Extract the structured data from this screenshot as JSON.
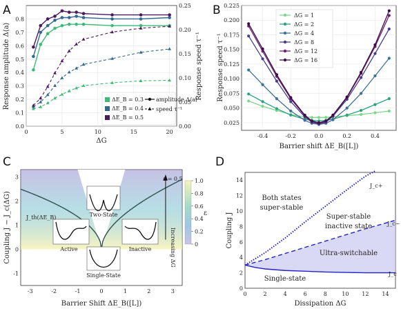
{
  "chart_data": [
    {
      "panel": "A",
      "type": "line",
      "xlabel": "ΔG",
      "ylabel": "Response amplitude Δ⟨a⟩",
      "y2label": "Response speed τ⁻¹",
      "xlim": [
        0,
        21
      ],
      "ylim": [
        0,
        0.9
      ],
      "y2lim": [
        0,
        0.25
      ],
      "xticks": [
        "0",
        "5",
        "10",
        "15",
        "20"
      ],
      "yticks": [
        "0.0",
        "0.1",
        "0.2",
        "0.3",
        "0.4",
        "0.5",
        "0.6",
        "0.7",
        "0.8"
      ],
      "y2ticks": [
        "0.00",
        "0.05",
        "0.10",
        "0.15",
        "0.20",
        "0.25"
      ],
      "x": [
        1,
        2,
        3,
        4,
        5,
        6,
        7,
        8,
        12,
        16,
        20
      ],
      "series": [
        {
          "name": "ΔE_B = 0.3",
          "color": "#3dbb74",
          "amplitude": [
            0.42,
            0.61,
            0.69,
            0.73,
            0.75,
            0.76,
            0.76,
            0.76,
            0.75,
            0.75,
            0.75
          ],
          "speed": [
            0.036,
            0.04,
            0.048,
            0.058,
            0.066,
            0.073,
            0.079,
            0.084,
            0.09,
            0.094,
            0.095
          ]
        },
        {
          "name": "ΔE_B = 0.4",
          "color": "#33688f",
          "amplitude": [
            0.52,
            0.7,
            0.75,
            0.79,
            0.81,
            0.81,
            0.82,
            0.81,
            0.8,
            0.8,
            0.81
          ],
          "speed": [
            0.04,
            0.05,
            0.065,
            0.084,
            0.1,
            0.112,
            0.12,
            0.128,
            0.14,
            0.153,
            0.16
          ]
        },
        {
          "name": "ΔE_B = 0.5",
          "color": "#4a1a5c",
          "amplitude": [
            0.59,
            0.75,
            0.8,
            0.82,
            0.86,
            0.85,
            0.85,
            0.84,
            0.83,
            0.83,
            0.83
          ],
          "speed": [
            0.043,
            0.058,
            0.082,
            0.11,
            0.135,
            0.156,
            0.17,
            0.18,
            0.195,
            0.203,
            0.207
          ]
        }
      ],
      "legend_styles": [
        "amplitude Δ⟨a⟩",
        "speed τ⁻¹"
      ]
    },
    {
      "panel": "B",
      "type": "line",
      "xlabel": "Barrier shift ΔE_B([L])",
      "ylabel": "Response speed τ⁻¹",
      "xlim": [
        -0.55,
        0.55
      ],
      "ylim": [
        0.012,
        0.225
      ],
      "xticks": [
        "-0.4",
        "-0.2",
        "0.0",
        "0.2",
        "0.4"
      ],
      "yticks": [
        "0.025",
        "0.050",
        "0.075",
        "0.100",
        "0.125",
        "0.150",
        "0.175",
        "0.200",
        "0.225"
      ],
      "x": [
        -0.5,
        -0.4,
        -0.3,
        -0.2,
        -0.1,
        -0.05,
        0.0,
        0.05,
        0.1,
        0.2,
        0.3,
        0.4,
        0.5
      ],
      "series": [
        {
          "name": "ΔG = 1",
          "color": "#7fd68a",
          "values": [
            0.062,
            0.053,
            0.046,
            0.039,
            0.035,
            0.034,
            0.034,
            0.034,
            0.035,
            0.037,
            0.039,
            0.042,
            0.045
          ]
        },
        {
          "name": "ΔG = 2",
          "color": "#2aa17f",
          "values": [
            0.074,
            0.061,
            0.049,
            0.038,
            0.031,
            0.029,
            0.028,
            0.029,
            0.031,
            0.038,
            0.046,
            0.056,
            0.066
          ]
        },
        {
          "name": "ΔG = 4",
          "color": "#3d7198",
          "values": [
            0.115,
            0.09,
            0.066,
            0.045,
            0.029,
            0.024,
            0.022,
            0.024,
            0.03,
            0.05,
            0.075,
            0.105,
            0.135
          ]
        },
        {
          "name": "ΔG = 8",
          "color": "#4a3d88",
          "values": [
            0.173,
            0.134,
            0.096,
            0.061,
            0.035,
            0.026,
            0.023,
            0.026,
            0.036,
            0.065,
            0.102,
            0.143,
            0.185
          ]
        },
        {
          "name": "ΔG = 12",
          "color": "#6a1f72",
          "values": [
            0.19,
            0.147,
            0.104,
            0.066,
            0.037,
            0.027,
            0.024,
            0.027,
            0.037,
            0.068,
            0.109,
            0.155,
            0.208
          ]
        },
        {
          "name": "ΔG = 16",
          "color": "#3d0e45",
          "values": [
            0.194,
            0.151,
            0.107,
            0.068,
            0.038,
            0.028,
            0.025,
            0.028,
            0.038,
            0.069,
            0.111,
            0.158,
            0.216
          ]
        }
      ]
    },
    {
      "panel": "C",
      "type": "line",
      "xlabel": "Barrier Shift ΔE_B([L])",
      "ylabel": "Coupling J − J_c(ΔG)",
      "xlim": [
        -3.4,
        3.4
      ],
      "ylim": [
        -1.5,
        3.3
      ],
      "xticks": [
        "-3",
        "-2",
        "-1",
        "0",
        "1",
        "2",
        "3"
      ],
      "yticks": [
        "-1",
        "0",
        "1",
        "2",
        "3"
      ],
      "curve_label": "J_th(ΔE_B)",
      "annotation_top": "ε = 0.5",
      "arrow_label": "Increasing ΔG",
      "colorbar_label": "ε",
      "colorbar_ticks": [
        "0",
        "0.2",
        "0.4",
        "0.6",
        "0.8",
        "1.0"
      ],
      "insets": [
        "Two-State",
        "Active",
        "Inactive",
        "Single-State"
      ]
    },
    {
      "panel": "D",
      "type": "line",
      "xlabel": "Dissipation ΔG",
      "ylabel": "Coupling J",
      "xlim": [
        0,
        15
      ],
      "ylim": [
        0,
        15
      ],
      "xticks": [
        "0",
        "2",
        "4",
        "6",
        "8",
        "10",
        "12",
        "14"
      ],
      "yticks": [
        "0",
        "2",
        "4",
        "6",
        "8",
        "10",
        "12",
        "14"
      ],
      "series": [
        {
          "name": "J_c+",
          "style": "dotted",
          "color": "#2121c9",
          "x": [
            0,
            2,
            4,
            6,
            8,
            10,
            12,
            13
          ],
          "values": [
            3.0,
            4.6,
            6.5,
            8.6,
            10.6,
            12.6,
            14.5,
            15.2
          ]
        },
        {
          "name": "J_c−",
          "style": "dashed",
          "color": "#2121c9",
          "x": [
            0,
            2,
            4,
            6,
            8,
            10,
            12,
            15
          ],
          "values": [
            3.0,
            3.7,
            4.5,
            5.3,
            6.1,
            6.9,
            7.7,
            8.8
          ]
        },
        {
          "name": "J_c",
          "style": "solid",
          "color": "#2121c9",
          "x": [
            0,
            1,
            2,
            4,
            6,
            8,
            10,
            12,
            15
          ],
          "values": [
            3.0,
            2.7,
            2.5,
            2.3,
            2.2,
            2.1,
            2.05,
            2.0,
            2.0
          ]
        }
      ],
      "regions": [
        "Both states",
        "super-stable",
        "Super-stable",
        "inactive state",
        "Ultra-switchable",
        "Single-state"
      ]
    }
  ]
}
